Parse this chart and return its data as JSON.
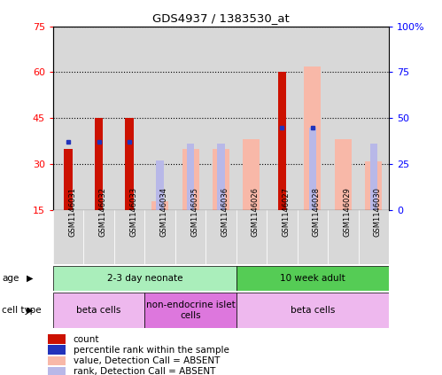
{
  "title": "GDS4937 / 1383530_at",
  "samples": [
    "GSM1146031",
    "GSM1146032",
    "GSM1146033",
    "GSM1146034",
    "GSM1146035",
    "GSM1146036",
    "GSM1146026",
    "GSM1146027",
    "GSM1146028",
    "GSM1146029",
    "GSM1146030"
  ],
  "count_values": [
    35,
    45,
    45,
    0,
    0,
    0,
    0,
    60,
    0,
    0,
    0
  ],
  "percentile_values": [
    37,
    37,
    37,
    0,
    0,
    0,
    0,
    45,
    45,
    0,
    0
  ],
  "absent_value_values": [
    0,
    0,
    0,
    18,
    35,
    35,
    38,
    0,
    62,
    38,
    31
  ],
  "absent_rank_values": [
    0,
    0,
    0,
    27,
    36,
    36,
    0,
    0,
    45,
    0,
    36
  ],
  "yleft_min": 15,
  "yleft_max": 75,
  "yright_min": 0,
  "yright_max": 100,
  "yticks_left": [
    15,
    30,
    45,
    60,
    75
  ],
  "yticks_right": [
    0,
    25,
    50,
    75,
    100
  ],
  "ytick_labels_left": [
    "15",
    "30",
    "45",
    "60",
    "75"
  ],
  "ytick_labels_right": [
    "0",
    "25",
    "50",
    "75",
    "100%"
  ],
  "color_count": "#cc1100",
  "color_percentile": "#2233bb",
  "color_absent_value": "#f8b8a8",
  "color_absent_rank": "#b8b8e8",
  "age_groups": [
    {
      "label": "2-3 day neonate",
      "start": 0,
      "end": 6,
      "color": "#aaeebb"
    },
    {
      "label": "10 week adult",
      "start": 6,
      "end": 11,
      "color": "#55cc55"
    }
  ],
  "cell_type_groups": [
    {
      "label": "beta cells",
      "start": 0,
      "end": 3,
      "color": "#eeb8ee"
    },
    {
      "label": "non-endocrine islet\ncells",
      "start": 3,
      "end": 6,
      "color": "#dd77dd"
    },
    {
      "label": "beta cells",
      "start": 6,
      "end": 11,
      "color": "#eeb8ee"
    }
  ],
  "legend_items": [
    {
      "label": "count",
      "color": "#cc1100"
    },
    {
      "label": "percentile rank within the sample",
      "color": "#2233bb"
    },
    {
      "label": "value, Detection Call = ABSENT",
      "color": "#f8b8a8"
    },
    {
      "label": "rank, Detection Call = ABSENT",
      "color": "#b8b8e8"
    }
  ]
}
